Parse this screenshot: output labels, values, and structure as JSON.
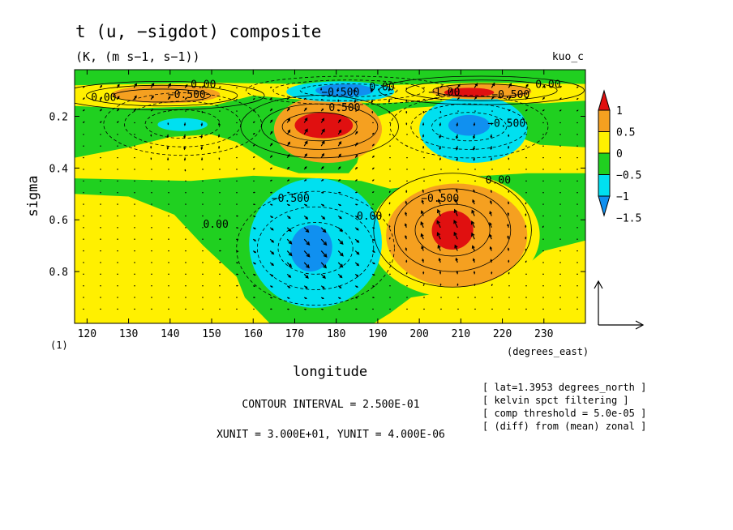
{
  "chart_data": {
    "type": "heatmap",
    "title": "t (u, −sigdot) composite",
    "units": "(K, (m s−1, s−1))",
    "run_label": "kuo_c",
    "xlabel": "longitude",
    "x_unit_label": "(degrees_east)",
    "ylabel": "sigma",
    "y_unit_label": "(1)",
    "xlim": [
      117,
      240
    ],
    "ylim": [
      1.0,
      0.02
    ],
    "x_ticks": [
      120,
      130,
      140,
      150,
      160,
      170,
      180,
      190,
      200,
      210,
      220,
      230
    ],
    "y_ticks": [
      0.2,
      0.4,
      0.6,
      0.8
    ],
    "colorbar": {
      "labels": [
        "1",
        "0.5",
        "0",
        "−0.5",
        "−1",
        "−1.5"
      ],
      "levels": [
        1,
        0.5,
        0,
        -0.5,
        -1,
        -1.5
      ],
      "colors": [
        "#e01010",
        "#f5a020",
        "#fff000",
        "#20d020",
        "#00e0f0",
        "#1090f0"
      ]
    },
    "contour_labels": [
      {
        "text": "0.00",
        "lon": 148,
        "sigma": 0.09
      },
      {
        "text": "0.00",
        "lon": 124,
        "sigma": 0.14
      },
      {
        "text": "−0.500",
        "lon": 144,
        "sigma": 0.13
      },
      {
        "text": "−0.500",
        "lon": 181,
        "sigma": 0.12
      },
      {
        "text": "0.00",
        "lon": 191,
        "sigma": 0.1
      },
      {
        "text": "0.500",
        "lon": 182,
        "sigma": 0.18
      },
      {
        "text": "−1.00",
        "lon": 206,
        "sigma": 0.12
      },
      {
        "text": "0.00",
        "lon": 231,
        "sigma": 0.09
      },
      {
        "text": "−0.500",
        "lon": 222,
        "sigma": 0.13
      },
      {
        "text": "−0.500",
        "lon": 221,
        "sigma": 0.24
      },
      {
        "text": "0.00",
        "lon": 219,
        "sigma": 0.46
      },
      {
        "text": "−0.500",
        "lon": 205,
        "sigma": 0.53
      },
      {
        "text": "−0.500",
        "lon": 169,
        "sigma": 0.53
      },
      {
        "text": "0.00",
        "lon": 151,
        "sigma": 0.63
      },
      {
        "text": "0.00",
        "lon": 188,
        "sigma": 0.6
      }
    ],
    "features": [
      {
        "kind": "negative",
        "lon": 175,
        "sigma": 0.71,
        "peak": -1.5
      },
      {
        "kind": "positive",
        "lon": 208,
        "sigma": 0.64,
        "peak": 1.2
      },
      {
        "kind": "positive",
        "lon": 176,
        "sigma": 0.24,
        "peak": 1.1
      },
      {
        "kind": "negative",
        "lon": 212,
        "sigma": 0.24,
        "peak": -1.2
      },
      {
        "kind": "negative",
        "lon": 143,
        "sigma": 0.23,
        "peak": -1.0
      },
      {
        "kind": "positive",
        "lon": 138,
        "sigma": 0.12,
        "peak": 0.6
      },
      {
        "kind": "negative",
        "lon": 183,
        "sigma": 0.1,
        "peak": -1.6
      },
      {
        "kind": "positive",
        "lon": 215,
        "sigma": 0.1,
        "peak": 1.2
      }
    ],
    "contour_interval": "CONTOUR INTERVAL = 2.500E-01",
    "vector_units": "XUNIT = 3.000E+01, YUNIT = 4.000E-06",
    "notes": [
      "[ lat=1.3953 degrees_north ]",
      "[ kelvin spct filtering ]",
      "[ comp threshold = 5.0e-05 ]",
      "[ (diff) from (mean) zonal ]"
    ]
  }
}
